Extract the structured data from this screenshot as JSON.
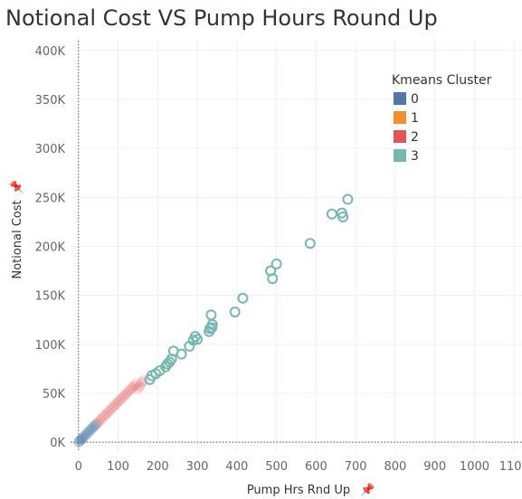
{
  "chart_data": {
    "type": "scatter",
    "title": "Notional Cost VS Pump Hours Round Up",
    "xlabel": "Pump Hrs Rnd Up",
    "ylabel": "Notional Cost",
    "xlim": [
      -20,
      1120
    ],
    "ylim": [
      -10000,
      410000
    ],
    "xticks": [
      "0",
      "100",
      "200",
      "300",
      "400",
      "500",
      "600",
      "700",
      "800",
      "900",
      "1000",
      "1100"
    ],
    "yticks": [
      "0K",
      "50K",
      "100K",
      "150K",
      "200K",
      "250K",
      "300K",
      "350K",
      "400K"
    ],
    "grid": true,
    "legend": {
      "title": "Kmeans Cluster",
      "placement": "top-right",
      "entries": [
        {
          "label": "0",
          "color": "#4e79a7"
        },
        {
          "label": "1",
          "color": "#f28e2b"
        },
        {
          "label": "2",
          "color": "#e15759"
        },
        {
          "label": "3",
          "color": "#76b7b2"
        }
      ]
    },
    "series": [
      {
        "cluster": "0",
        "color": "#4e79a7",
        "x": [
          0,
          2,
          4,
          6,
          8,
          10,
          13,
          16,
          19,
          22,
          25,
          28,
          31,
          34,
          37,
          40,
          43,
          46
        ],
        "y": [
          0,
          700,
          1500,
          2300,
          3200,
          4100,
          5300,
          6600,
          7800,
          9000,
          10300,
          11500,
          12700,
          14000,
          15200,
          16400,
          17700,
          18900
        ]
      },
      {
        "cluster": "2",
        "color": "#e15759",
        "x": [
          50,
          55,
          60,
          65,
          70,
          75,
          80,
          85,
          90,
          95,
          100,
          105,
          110,
          115,
          120,
          125,
          130,
          135,
          140,
          145,
          150,
          155,
          160,
          165
        ],
        "y": [
          20500,
          22500,
          24600,
          26700,
          28700,
          30800,
          32800,
          34900,
          36900,
          39000,
          41000,
          43100,
          45100,
          47200,
          49200,
          51300,
          53300,
          55400,
          57400,
          59500,
          55000,
          57000,
          61000,
          63000
        ]
      },
      {
        "cluster": "3",
        "color": "#76b7b2",
        "x": [
          180,
          185,
          195,
          205,
          220,
          225,
          230,
          235,
          240,
          260,
          280,
          290,
          295,
          300,
          330,
          332,
          335,
          337,
          338,
          395,
          415,
          485,
          490,
          500,
          585,
          640,
          665,
          668,
          680
        ],
        "y": [
          64000,
          68000,
          70000,
          73000,
          77000,
          80000,
          82000,
          85000,
          93000,
          90000,
          98000,
          104000,
          108000,
          105000,
          113000,
          116000,
          130000,
          117000,
          120000,
          133000,
          147000,
          175000,
          167000,
          182000,
          203000,
          233000,
          234000,
          230000,
          248000
        ]
      }
    ]
  }
}
